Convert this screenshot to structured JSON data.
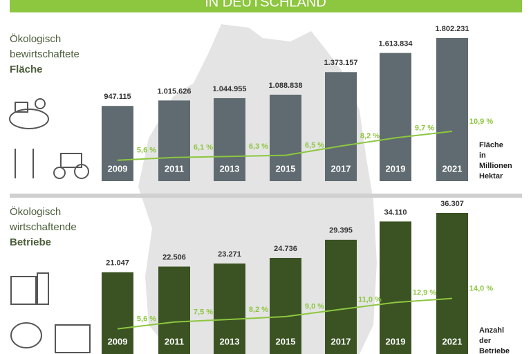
{
  "header": {
    "title": "IN DEUTSCHLAND"
  },
  "chart_data": [
    {
      "type": "bar",
      "title_lines": [
        "Ökologisch",
        "bewirtschaftete",
        "Fläche"
      ],
      "note_lines": [
        "Fläche",
        "in",
        "Millionen",
        "Hektar"
      ],
      "categories": [
        "2009",
        "2011",
        "2013",
        "2015",
        "2017",
        "2019",
        "2021"
      ],
      "values": [
        947115,
        1015626,
        1044955,
        1088838,
        1373157,
        1613834,
        1802231
      ],
      "value_labels": [
        "947.115",
        "1.015.626",
        "1.044.955",
        "1.088.838",
        "1.373.157",
        "1.613.834",
        "1.802.231"
      ],
      "color": "#5f6b70",
      "line": {
        "values": [
          5.6,
          6.1,
          6.3,
          6.5,
          8.2,
          9.7,
          10.9
        ],
        "value_labels": [
          "5,6 %",
          "6,1 %",
          "6,3 %",
          "6,5 %",
          "8,2 %",
          "9,7 %",
          "10,9 %"
        ],
        "color": "#8dc63f"
      }
    },
    {
      "type": "bar",
      "title_lines": [
        "Ökologisch",
        "wirtschaftende",
        "Betriebe"
      ],
      "note_lines": [
        "Anzahl",
        "der",
        "Betriebe"
      ],
      "categories": [
        "2009",
        "2011",
        "2013",
        "2015",
        "2017",
        "2019",
        "2021"
      ],
      "values": [
        21047,
        22506,
        23271,
        24736,
        29395,
        34110,
        36307
      ],
      "value_labels": [
        "21.047",
        "22.506",
        "23.271",
        "24.736",
        "29.395",
        "34.110",
        "36.307"
      ],
      "color": "#3b5323",
      "line": {
        "values": [
          5.6,
          7.5,
          8.2,
          9.0,
          11.0,
          12.9,
          14.0
        ],
        "value_labels": [
          "5,6 %",
          "7,5 %",
          "8,2 %",
          "9,0 %",
          "11,0 %",
          "12,9 %",
          "14,0 %"
        ],
        "color": "#8dc63f"
      }
    }
  ]
}
